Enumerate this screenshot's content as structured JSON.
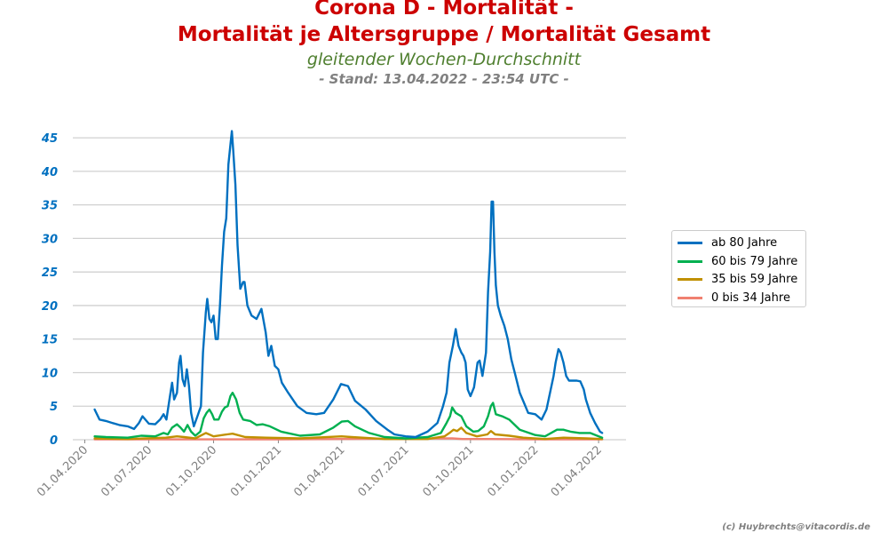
{
  "title_line1": "Corona D - Mortalität -",
  "title_line2": "Mortalität je Altersgruppe / Mortalität Gesamt",
  "subtitle": "gleitender Wochen-Durchschnitt",
  "stand": "- Stand: 13.04.2022 - 23:54 UTC -",
  "credit": "(c) Huybrechts@vitacordis.de",
  "chart_data": {
    "type": "line",
    "title": "Corona D - Mortalität - Mortalität je Altersgruppe / Mortalität Gesamt",
    "xlabel": "",
    "ylabel": "",
    "ylim": [
      0,
      47
    ],
    "yticks": [
      0,
      5,
      10,
      15,
      20,
      25,
      30,
      35,
      40,
      45
    ],
    "xlim": [
      "2020-03-15",
      "2022-05-10"
    ],
    "xticks": [
      {
        "date": "2020-04-01",
        "label": "01.04.2020"
      },
      {
        "date": "2020-07-01",
        "label": "01.07.2020"
      },
      {
        "date": "2020-10-01",
        "label": "01.10.2020"
      },
      {
        "date": "2021-01-01",
        "label": "01.01.2021"
      },
      {
        "date": "2021-04-01",
        "label": "01.04.2021"
      },
      {
        "date": "2021-07-01",
        "label": "01.07.2021"
      },
      {
        "date": "2021-10-01",
        "label": "01.10.2021"
      },
      {
        "date": "2022-01-01",
        "label": "01.01.2022"
      },
      {
        "date": "2022-04-01",
        "label": "01.04.2022"
      }
    ],
    "grid": "horizontal",
    "legend_position": "right",
    "series": [
      {
        "name": "ab 80 Jahre",
        "color": "#0070c0",
        "points": [
          [
            "2020-04-15",
            4.5
          ],
          [
            "2020-04-22",
            3.0
          ],
          [
            "2020-05-01",
            2.8
          ],
          [
            "2020-05-10",
            2.5
          ],
          [
            "2020-05-20",
            2.2
          ],
          [
            "2020-06-01",
            2.0
          ],
          [
            "2020-06-10",
            1.6
          ],
          [
            "2020-06-17",
            2.5
          ],
          [
            "2020-06-22",
            3.5
          ],
          [
            "2020-07-01",
            2.4
          ],
          [
            "2020-07-10",
            2.3
          ],
          [
            "2020-07-17",
            3.0
          ],
          [
            "2020-07-22",
            3.8
          ],
          [
            "2020-07-26",
            3.0
          ],
          [
            "2020-07-31",
            6.5
          ],
          [
            "2020-08-03",
            8.5
          ],
          [
            "2020-08-06",
            6.0
          ],
          [
            "2020-08-10",
            7.0
          ],
          [
            "2020-08-13",
            11.5
          ],
          [
            "2020-08-15",
            12.5
          ],
          [
            "2020-08-18",
            9.0
          ],
          [
            "2020-08-21",
            8.0
          ],
          [
            "2020-08-24",
            10.5
          ],
          [
            "2020-08-27",
            8.0
          ],
          [
            "2020-08-30",
            4.0
          ],
          [
            "2020-09-03",
            2.0
          ],
          [
            "2020-09-08",
            3.5
          ],
          [
            "2020-09-13",
            5.0
          ],
          [
            "2020-09-16",
            13.0
          ],
          [
            "2020-09-20",
            19.0
          ],
          [
            "2020-09-22",
            21.0
          ],
          [
            "2020-09-25",
            18.0
          ],
          [
            "2020-09-28",
            17.5
          ],
          [
            "2020-10-01",
            18.5
          ],
          [
            "2020-10-04",
            15.0
          ],
          [
            "2020-10-07",
            15.0
          ],
          [
            "2020-10-10",
            20.0
          ],
          [
            "2020-10-13",
            26.0
          ],
          [
            "2020-10-16",
            31.0
          ],
          [
            "2020-10-19",
            33.0
          ],
          [
            "2020-10-22",
            41.0
          ],
          [
            "2020-10-25",
            44.0
          ],
          [
            "2020-10-27",
            46.0
          ],
          [
            "2020-10-29",
            43.0
          ],
          [
            "2020-11-01",
            38.0
          ],
          [
            "2020-11-04",
            29.0
          ],
          [
            "2020-11-08",
            22.5
          ],
          [
            "2020-11-12",
            23.5
          ],
          [
            "2020-11-14",
            23.5
          ],
          [
            "2020-11-18",
            20.0
          ],
          [
            "2020-11-24",
            18.5
          ],
          [
            "2020-12-01",
            18.0
          ],
          [
            "2020-12-08",
            19.5
          ],
          [
            "2020-12-14",
            16.0
          ],
          [
            "2020-12-18",
            12.5
          ],
          [
            "2020-12-22",
            14.0
          ],
          [
            "2020-12-27",
            11.0
          ],
          [
            "2021-01-01",
            10.5
          ],
          [
            "2021-01-06",
            8.5
          ],
          [
            "2021-01-15",
            7.0
          ],
          [
            "2021-01-28",
            5.0
          ],
          [
            "2021-02-10",
            4.0
          ],
          [
            "2021-02-24",
            3.8
          ],
          [
            "2021-03-07",
            4.0
          ],
          [
            "2021-03-20",
            6.0
          ],
          [
            "2021-03-31",
            8.3
          ],
          [
            "2021-04-10",
            8.0
          ],
          [
            "2021-04-20",
            5.8
          ],
          [
            "2021-05-05",
            4.5
          ],
          [
            "2021-05-20",
            2.8
          ],
          [
            "2021-06-05",
            1.5
          ],
          [
            "2021-06-15",
            0.8
          ],
          [
            "2021-07-01",
            0.5
          ],
          [
            "2021-07-15",
            0.4
          ],
          [
            "2021-08-01",
            1.2
          ],
          [
            "2021-08-15",
            2.5
          ],
          [
            "2021-08-23",
            5.0
          ],
          [
            "2021-08-28",
            7.0
          ],
          [
            "2021-09-01",
            11.5
          ],
          [
            "2021-09-06",
            14.0
          ],
          [
            "2021-09-10",
            16.5
          ],
          [
            "2021-09-14",
            14.0
          ],
          [
            "2021-09-18",
            13.0
          ],
          [
            "2021-09-21",
            12.5
          ],
          [
            "2021-09-24",
            11.5
          ],
          [
            "2021-09-27",
            7.5
          ],
          [
            "2021-10-01",
            6.5
          ],
          [
            "2021-10-06",
            7.8
          ],
          [
            "2021-10-11",
            11.5
          ],
          [
            "2021-10-14",
            11.8
          ],
          [
            "2021-10-18",
            9.5
          ],
          [
            "2021-10-23",
            13.0
          ],
          [
            "2021-10-26",
            22.0
          ],
          [
            "2021-10-29",
            28.0
          ],
          [
            "2021-10-31",
            35.5
          ],
          [
            "2021-11-02",
            35.5
          ],
          [
            "2021-11-04",
            28.0
          ],
          [
            "2021-11-06",
            23.0
          ],
          [
            "2021-11-09",
            20.0
          ],
          [
            "2021-11-13",
            18.5
          ],
          [
            "2021-11-18",
            17.0
          ],
          [
            "2021-11-23",
            15.0
          ],
          [
            "2021-11-28",
            12.0
          ],
          [
            "2021-12-04",
            9.5
          ],
          [
            "2021-12-10",
            7.0
          ],
          [
            "2021-12-16",
            5.5
          ],
          [
            "2021-12-22",
            4.0
          ],
          [
            "2022-01-01",
            3.8
          ],
          [
            "2022-01-10",
            3.0
          ],
          [
            "2022-01-17",
            4.5
          ],
          [
            "2022-01-22",
            7.0
          ],
          [
            "2022-01-27",
            9.5
          ],
          [
            "2022-01-30",
            11.5
          ],
          [
            "2022-02-03",
            13.5
          ],
          [
            "2022-02-06",
            13.0
          ],
          [
            "2022-02-10",
            11.5
          ],
          [
            "2022-02-14",
            9.5
          ],
          [
            "2022-02-18",
            8.8
          ],
          [
            "2022-02-24",
            8.8
          ],
          [
            "2022-03-01",
            8.8
          ],
          [
            "2022-03-06",
            8.7
          ],
          [
            "2022-03-11",
            7.5
          ],
          [
            "2022-03-14",
            6.0
          ],
          [
            "2022-03-20",
            4.0
          ],
          [
            "2022-03-27",
            2.5
          ],
          [
            "2022-04-03",
            1.2
          ],
          [
            "2022-04-06",
            1.0
          ]
        ]
      },
      {
        "name": "60 bis 79 Jahre",
        "color": "#00b050",
        "points": [
          [
            "2020-04-15",
            0.5
          ],
          [
            "2020-05-01",
            0.4
          ],
          [
            "2020-06-01",
            0.3
          ],
          [
            "2020-06-20",
            0.6
          ],
          [
            "2020-07-10",
            0.5
          ],
          [
            "2020-07-22",
            1.0
          ],
          [
            "2020-07-28",
            0.8
          ],
          [
            "2020-08-03",
            1.8
          ],
          [
            "2020-08-10",
            2.3
          ],
          [
            "2020-08-15",
            1.8
          ],
          [
            "2020-08-20",
            1.2
          ],
          [
            "2020-08-25",
            2.2
          ],
          [
            "2020-08-30",
            1.2
          ],
          [
            "2020-09-05",
            0.6
          ],
          [
            "2020-09-12",
            1.2
          ],
          [
            "2020-09-17",
            3.2
          ],
          [
            "2020-09-21",
            4.0
          ],
          [
            "2020-09-25",
            4.5
          ],
          [
            "2020-09-29",
            3.8
          ],
          [
            "2020-10-02",
            3.0
          ],
          [
            "2020-10-08",
            3.0
          ],
          [
            "2020-10-13",
            4.2
          ],
          [
            "2020-10-17",
            4.8
          ],
          [
            "2020-10-21",
            5.0
          ],
          [
            "2020-10-25",
            6.5
          ],
          [
            "2020-10-28",
            7.0
          ],
          [
            "2020-11-02",
            6.0
          ],
          [
            "2020-11-07",
            4.0
          ],
          [
            "2020-11-12",
            3.0
          ],
          [
            "2020-11-22",
            2.8
          ],
          [
            "2020-12-01",
            2.2
          ],
          [
            "2020-12-10",
            2.3
          ],
          [
            "2020-12-20",
            2.0
          ],
          [
            "2021-01-05",
            1.2
          ],
          [
            "2021-02-01",
            0.6
          ],
          [
            "2021-03-01",
            0.8
          ],
          [
            "2021-03-20",
            1.8
          ],
          [
            "2021-04-01",
            2.7
          ],
          [
            "2021-04-10",
            2.8
          ],
          [
            "2021-04-20",
            2.0
          ],
          [
            "2021-05-10",
            1.0
          ],
          [
            "2021-06-01",
            0.4
          ],
          [
            "2021-07-01",
            0.2
          ],
          [
            "2021-08-01",
            0.4
          ],
          [
            "2021-08-20",
            1.0
          ],
          [
            "2021-08-28",
            2.5
          ],
          [
            "2021-09-02",
            3.5
          ],
          [
            "2021-09-05",
            4.8
          ],
          [
            "2021-09-10",
            4.0
          ],
          [
            "2021-09-18",
            3.5
          ],
          [
            "2021-09-25",
            2.0
          ],
          [
            "2021-10-05",
            1.2
          ],
          [
            "2021-10-12",
            1.3
          ],
          [
            "2021-10-20",
            2.0
          ],
          [
            "2021-10-26",
            3.5
          ],
          [
            "2021-10-30",
            5.0
          ],
          [
            "2021-11-02",
            5.5
          ],
          [
            "2021-11-06",
            3.8
          ],
          [
            "2021-11-15",
            3.5
          ],
          [
            "2021-11-25",
            3.0
          ],
          [
            "2021-12-10",
            1.5
          ],
          [
            "2022-01-01",
            0.7
          ],
          [
            "2022-01-15",
            0.5
          ],
          [
            "2022-02-01",
            1.5
          ],
          [
            "2022-02-10",
            1.5
          ],
          [
            "2022-02-20",
            1.2
          ],
          [
            "2022-03-05",
            1.0
          ],
          [
            "2022-03-20",
            1.0
          ],
          [
            "2022-04-06",
            0.3
          ]
        ]
      },
      {
        "name": "35 bis 59 Jahre",
        "color": "#c09000",
        "points": [
          [
            "2020-04-15",
            0.2
          ],
          [
            "2020-06-01",
            0.1
          ],
          [
            "2020-07-25",
            0.3
          ],
          [
            "2020-08-10",
            0.5
          ],
          [
            "2020-08-20",
            0.4
          ],
          [
            "2020-09-05",
            0.2
          ],
          [
            "2020-09-20",
            1.0
          ],
          [
            "2020-10-01",
            0.5
          ],
          [
            "2020-10-20",
            0.8
          ],
          [
            "2020-10-28",
            0.9
          ],
          [
            "2020-11-15",
            0.4
          ],
          [
            "2020-12-15",
            0.3
          ],
          [
            "2021-02-01",
            0.2
          ],
          [
            "2021-04-01",
            0.5
          ],
          [
            "2021-04-15",
            0.4
          ],
          [
            "2021-06-01",
            0.1
          ],
          [
            "2021-08-01",
            0.1
          ],
          [
            "2021-08-25",
            0.5
          ],
          [
            "2021-09-01",
            1.0
          ],
          [
            "2021-09-07",
            1.5
          ],
          [
            "2021-09-12",
            1.3
          ],
          [
            "2021-09-18",
            1.8
          ],
          [
            "2021-09-25",
            1.0
          ],
          [
            "2021-10-10",
            0.5
          ],
          [
            "2021-10-25",
            0.8
          ],
          [
            "2021-10-30",
            1.3
          ],
          [
            "2021-11-05",
            0.8
          ],
          [
            "2021-11-25",
            0.6
          ],
          [
            "2021-12-15",
            0.3
          ],
          [
            "2022-01-15",
            0.1
          ],
          [
            "2022-02-10",
            0.3
          ],
          [
            "2022-03-15",
            0.2
          ],
          [
            "2022-04-06",
            0.1
          ]
        ]
      },
      {
        "name": "0 bis 34 Jahre",
        "color": "#f08070",
        "points": [
          [
            "2020-04-15",
            0.05
          ],
          [
            "2020-09-01",
            0.05
          ],
          [
            "2021-01-01",
            0.05
          ],
          [
            "2021-09-05",
            0.2
          ],
          [
            "2021-09-20",
            0.1
          ],
          [
            "2021-11-01",
            0.1
          ],
          [
            "2022-01-01",
            0.05
          ],
          [
            "2022-04-06",
            0.05
          ]
        ]
      }
    ]
  }
}
